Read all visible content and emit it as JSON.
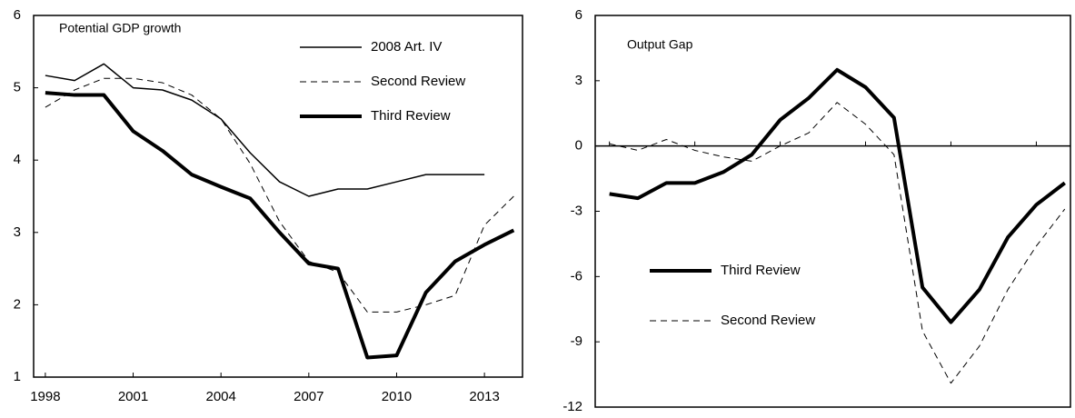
{
  "chart_data": [
    {
      "type": "line",
      "title": "Potential GDP growth",
      "x": [
        1998,
        1999,
        2000,
        2001,
        2002,
        2003,
        2004,
        2005,
        2006,
        2007,
        2008,
        2009,
        2010,
        2011,
        2012,
        2013,
        2014
      ],
      "xlim": [
        1997.6,
        2014.3
      ],
      "xticks": [
        1998,
        2001,
        2004,
        2007,
        2010,
        2013
      ],
      "ylim": [
        1,
        6
      ],
      "yticks": [
        1,
        2,
        3,
        4,
        5,
        6
      ],
      "legend": "upper right",
      "series": [
        {
          "name": "2008 Art. IV",
          "color": "#000000",
          "linewidth": 1.5,
          "linestyle": "solid",
          "values": [
            5.17,
            5.1,
            5.33,
            5.0,
            4.97,
            4.83,
            4.57,
            4.1,
            3.7,
            3.5,
            3.6,
            3.6,
            3.7,
            3.8,
            3.8,
            3.8,
            null
          ]
        },
        {
          "name": "Second Review",
          "color": "#000000",
          "linewidth": 1,
          "linestyle": "dashed",
          "values": [
            4.73,
            4.97,
            5.13,
            5.13,
            5.07,
            4.9,
            4.57,
            3.95,
            3.15,
            2.6,
            2.45,
            1.9,
            1.9,
            2.0,
            2.13,
            3.1,
            3.5
          ]
        },
        {
          "name": "Third Review",
          "color": "#000000",
          "linewidth": 4,
          "linestyle": "solid",
          "values": [
            4.93,
            4.9,
            4.9,
            4.4,
            4.13,
            3.8,
            3.63,
            3.47,
            3.0,
            2.57,
            2.5,
            1.27,
            1.3,
            2.17,
            2.6,
            2.83,
            3.03
          ]
        }
      ]
    },
    {
      "type": "line",
      "title": "Output Gap",
      "x": [
        1998,
        1999,
        2000,
        2001,
        2002,
        2003,
        2004,
        2005,
        2006,
        2007,
        2008,
        2009,
        2010,
        2011,
        2012,
        2013,
        2014
      ],
      "xlim": [
        1997.5,
        2014.2
      ],
      "xticks": [
        1998,
        2001,
        2004,
        2007,
        2010,
        2013
      ],
      "ylim": [
        -12,
        6
      ],
      "yticks": [
        -12,
        -9,
        -6,
        -3,
        0,
        3,
        6
      ],
      "legend": "center left",
      "series": [
        {
          "name": "Third Review",
          "color": "#000000",
          "linewidth": 4,
          "linestyle": "solid",
          "values": [
            -2.2,
            -2.4,
            -1.7,
            -1.7,
            -1.2,
            -0.4,
            1.2,
            2.2,
            3.5,
            2.7,
            1.3,
            -6.5,
            -8.1,
            -6.6,
            -4.2,
            -2.7,
            -1.7
          ]
        },
        {
          "name": "Second Review",
          "color": "#000000",
          "linewidth": 1,
          "linestyle": "dashed",
          "values": [
            0.1,
            -0.2,
            0.3,
            -0.2,
            -0.5,
            -0.7,
            0.0,
            0.6,
            2.0,
            1.0,
            -0.4,
            -8.5,
            -10.9,
            -9.2,
            -6.6,
            -4.6,
            -2.9
          ]
        }
      ]
    }
  ]
}
